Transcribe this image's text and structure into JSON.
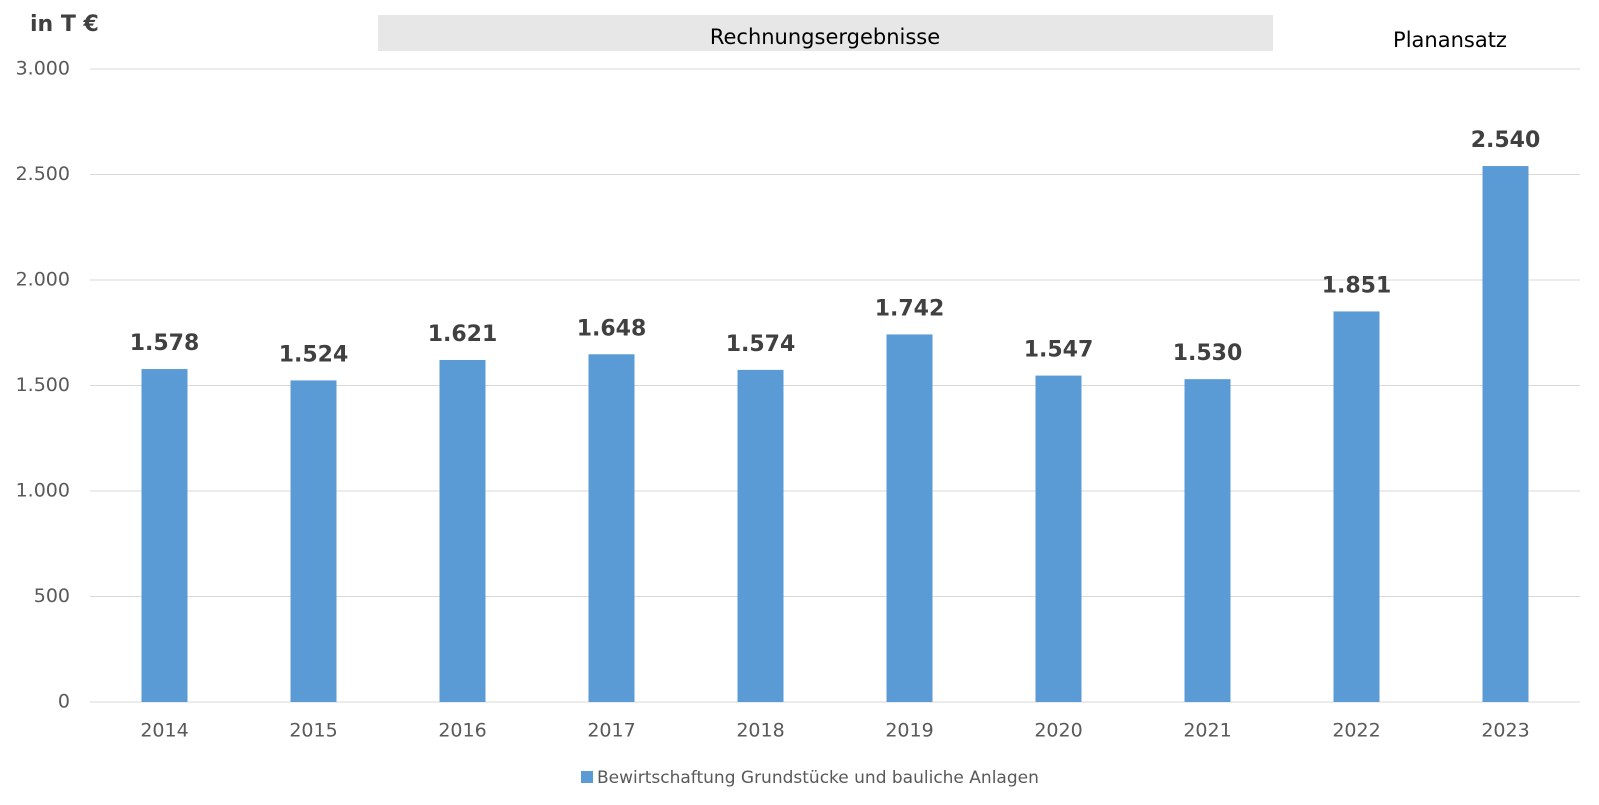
{
  "chart_data": {
    "type": "bar",
    "ylabel": "in T €",
    "annotations": [
      "Rechnungsergebnisse",
      "Planansatz"
    ],
    "categories": [
      "2014",
      "2015",
      "2016",
      "2017",
      "2018",
      "2019",
      "2020",
      "2021",
      "2022",
      "2023"
    ],
    "series": [
      {
        "name": "Bewirtschaftung Grundstücke und bauliche Anlagen",
        "color": "#5b9bd5",
        "values": [
          1578,
          1524,
          1621,
          1648,
          1574,
          1742,
          1547,
          1530,
          1851,
          2540
        ],
        "value_labels": [
          "1.578",
          "1.524",
          "1.621",
          "1.648",
          "1.574",
          "1.742",
          "1.547",
          "1.530",
          "1.851",
          "2.540"
        ]
      }
    ],
    "ylim": [
      0,
      3000
    ],
    "yticks": [
      0,
      500,
      {
        "value": 1000,
        "label": "1.000"
      },
      {
        "value": 1500,
        "label": "1.500"
      },
      {
        "value": 2000,
        "label": "2.000"
      },
      {
        "value": 2500,
        "label": "2.500"
      },
      {
        "value": 3000,
        "label": "3.000"
      }
    ],
    "grid": true,
    "legend": "bottom"
  }
}
